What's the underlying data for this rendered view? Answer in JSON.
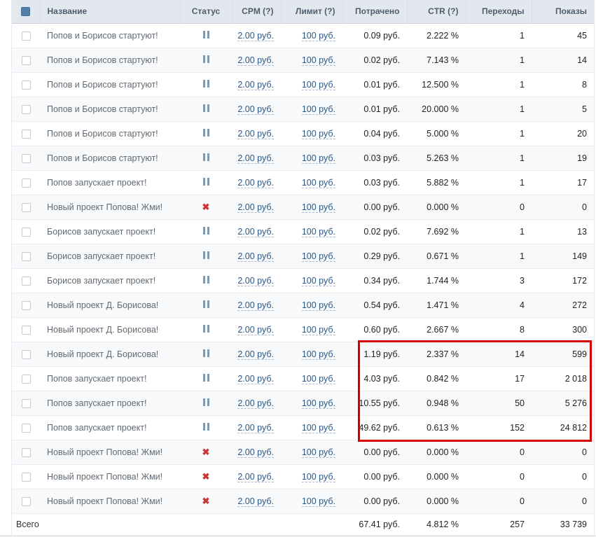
{
  "table": {
    "columns": [
      "Название",
      "Статус",
      "CPM (?)",
      "Лимит (?)",
      "Потрачено",
      "CTR (?)",
      "Переходы",
      "Показы"
    ],
    "rows": [
      {
        "name": "Попов и Борисов стартуют!",
        "status": "paused",
        "cpm": "2.00 руб.",
        "limit": "100 руб.",
        "spent": "0.09 руб.",
        "ctr": "2.222 %",
        "clicks": "1",
        "impressions": "45"
      },
      {
        "name": "Попов и Борисов стартуют!",
        "status": "paused",
        "cpm": "2.00 руб.",
        "limit": "100 руб.",
        "spent": "0.02 руб.",
        "ctr": "7.143 %",
        "clicks": "1",
        "impressions": "14"
      },
      {
        "name": "Попов и Борисов стартуют!",
        "status": "paused",
        "cpm": "2.00 руб.",
        "limit": "100 руб.",
        "spent": "0.01 руб.",
        "ctr": "12.500 %",
        "clicks": "1",
        "impressions": "8"
      },
      {
        "name": "Попов и Борисов стартуют!",
        "status": "paused",
        "cpm": "2.00 руб.",
        "limit": "100 руб.",
        "spent": "0.01 руб.",
        "ctr": "20.000 %",
        "clicks": "1",
        "impressions": "5"
      },
      {
        "name": "Попов и Борисов стартуют!",
        "status": "paused",
        "cpm": "2.00 руб.",
        "limit": "100 руб.",
        "spent": "0.04 руб.",
        "ctr": "5.000 %",
        "clicks": "1",
        "impressions": "20"
      },
      {
        "name": "Попов и Борисов стартуют!",
        "status": "paused",
        "cpm": "2.00 руб.",
        "limit": "100 руб.",
        "spent": "0.03 руб.",
        "ctr": "5.263 %",
        "clicks": "1",
        "impressions": "19"
      },
      {
        "name": "Попов запускает проект!",
        "status": "paused",
        "cpm": "2.00 руб.",
        "limit": "100 руб.",
        "spent": "0.03 руб.",
        "ctr": "5.882 %",
        "clicks": "1",
        "impressions": "17"
      },
      {
        "name": "Новый проект Попова! Жми!",
        "status": "stopped",
        "cpm": "2.00 руб.",
        "limit": "100 руб.",
        "spent": "0.00 руб.",
        "ctr": "0.000 %",
        "clicks": "0",
        "impressions": "0"
      },
      {
        "name": "Борисов запускает проект!",
        "status": "paused",
        "cpm": "2.00 руб.",
        "limit": "100 руб.",
        "spent": "0.02 руб.",
        "ctr": "7.692 %",
        "clicks": "1",
        "impressions": "13"
      },
      {
        "name": "Борисов запускает проект!",
        "status": "paused",
        "cpm": "2.00 руб.",
        "limit": "100 руб.",
        "spent": "0.29 руб.",
        "ctr": "0.671 %",
        "clicks": "1",
        "impressions": "149"
      },
      {
        "name": "Борисов запускает проект!",
        "status": "paused",
        "cpm": "2.00 руб.",
        "limit": "100 руб.",
        "spent": "0.34 руб.",
        "ctr": "1.744 %",
        "clicks": "3",
        "impressions": "172"
      },
      {
        "name": "Новый проект Д. Борисова!",
        "status": "paused",
        "cpm": "2.00 руб.",
        "limit": "100 руб.",
        "spent": "0.54 руб.",
        "ctr": "1.471 %",
        "clicks": "4",
        "impressions": "272"
      },
      {
        "name": "Новый проект Д. Борисова!",
        "status": "paused",
        "cpm": "2.00 руб.",
        "limit": "100 руб.",
        "spent": "0.60 руб.",
        "ctr": "2.667 %",
        "clicks": "8",
        "impressions": "300"
      },
      {
        "name": "Новый проект Д. Борисова!",
        "status": "paused",
        "cpm": "2.00 руб.",
        "limit": "100 руб.",
        "spent": "1.19 руб.",
        "ctr": "2.337 %",
        "clicks": "14",
        "impressions": "599"
      },
      {
        "name": "Попов запускает проект!",
        "status": "paused",
        "cpm": "2.00 руб.",
        "limit": "100 руб.",
        "spent": "4.03 руб.",
        "ctr": "0.842 %",
        "clicks": "17",
        "impressions": "2 018"
      },
      {
        "name": "Попов запускает проект!",
        "status": "paused",
        "cpm": "2.00 руб.",
        "limit": "100 руб.",
        "spent": "10.55 руб.",
        "ctr": "0.948 %",
        "clicks": "50",
        "impressions": "5 276"
      },
      {
        "name": "Попов запускает проект!",
        "status": "paused",
        "cpm": "2.00 руб.",
        "limit": "100 руб.",
        "spent": "49.62 руб.",
        "ctr": "0.613 %",
        "clicks": "152",
        "impressions": "24 812"
      },
      {
        "name": "Новый проект Попова! Жми!",
        "status": "stopped",
        "cpm": "2.00 руб.",
        "limit": "100 руб.",
        "spent": "0.00 руб.",
        "ctr": "0.000 %",
        "clicks": "0",
        "impressions": "0"
      },
      {
        "name": "Новый проект Попова! Жми!",
        "status": "stopped",
        "cpm": "2.00 руб.",
        "limit": "100 руб.",
        "spent": "0.00 руб.",
        "ctr": "0.000 %",
        "clicks": "0",
        "impressions": "0"
      },
      {
        "name": "Новый проект Попова! Жми!",
        "status": "stopped",
        "cpm": "2.00 руб.",
        "limit": "100 руб.",
        "spent": "0.00 руб.",
        "ctr": "0.000 %",
        "clicks": "0",
        "impressions": "0"
      }
    ],
    "footer": {
      "label": "Всего",
      "spent": "67.41 руб.",
      "ctr": "4.812 %",
      "clicks": "257",
      "impressions": "33 739"
    }
  },
  "annotation": {
    "color": "#d40000"
  }
}
